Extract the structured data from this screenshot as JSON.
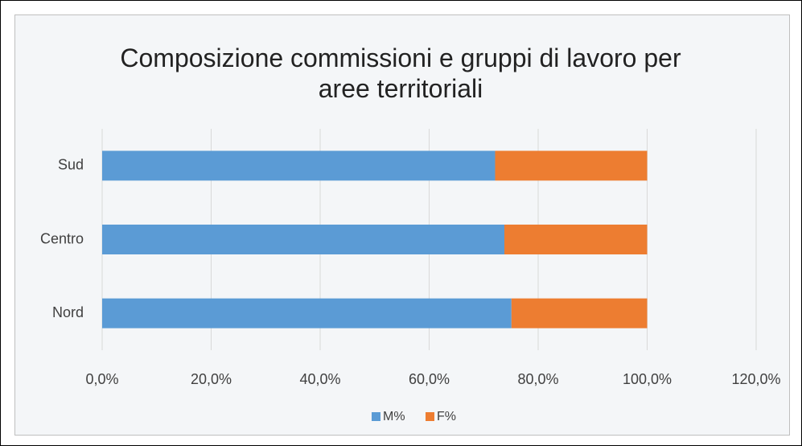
{
  "chart_data": {
    "type": "stacked-barh",
    "title": "Composizione commissioni e gruppi di lavoro per aree territoriali",
    "categories": [
      "Nord",
      "Centro",
      "Sud"
    ],
    "series": [
      {
        "name": "M%",
        "color": "#5b9bd5",
        "values": [
          75.1,
          73.8,
          72.1
        ]
      },
      {
        "name": "F%",
        "color": "#ed7d31",
        "values": [
          24.9,
          26.2,
          27.9
        ]
      }
    ],
    "xlim": [
      0,
      120
    ],
    "xticks": [
      {
        "value": 0,
        "label": "0,0%"
      },
      {
        "value": 20,
        "label": "20,0%"
      },
      {
        "value": 40,
        "label": "40,0%"
      },
      {
        "value": 60,
        "label": "60,0%"
      },
      {
        "value": 80,
        "label": "80,0%"
      },
      {
        "value": 100,
        "label": "100,0%"
      },
      {
        "value": 120,
        "label": "120,0%"
      }
    ],
    "grid": true,
    "legend": "bottom"
  }
}
